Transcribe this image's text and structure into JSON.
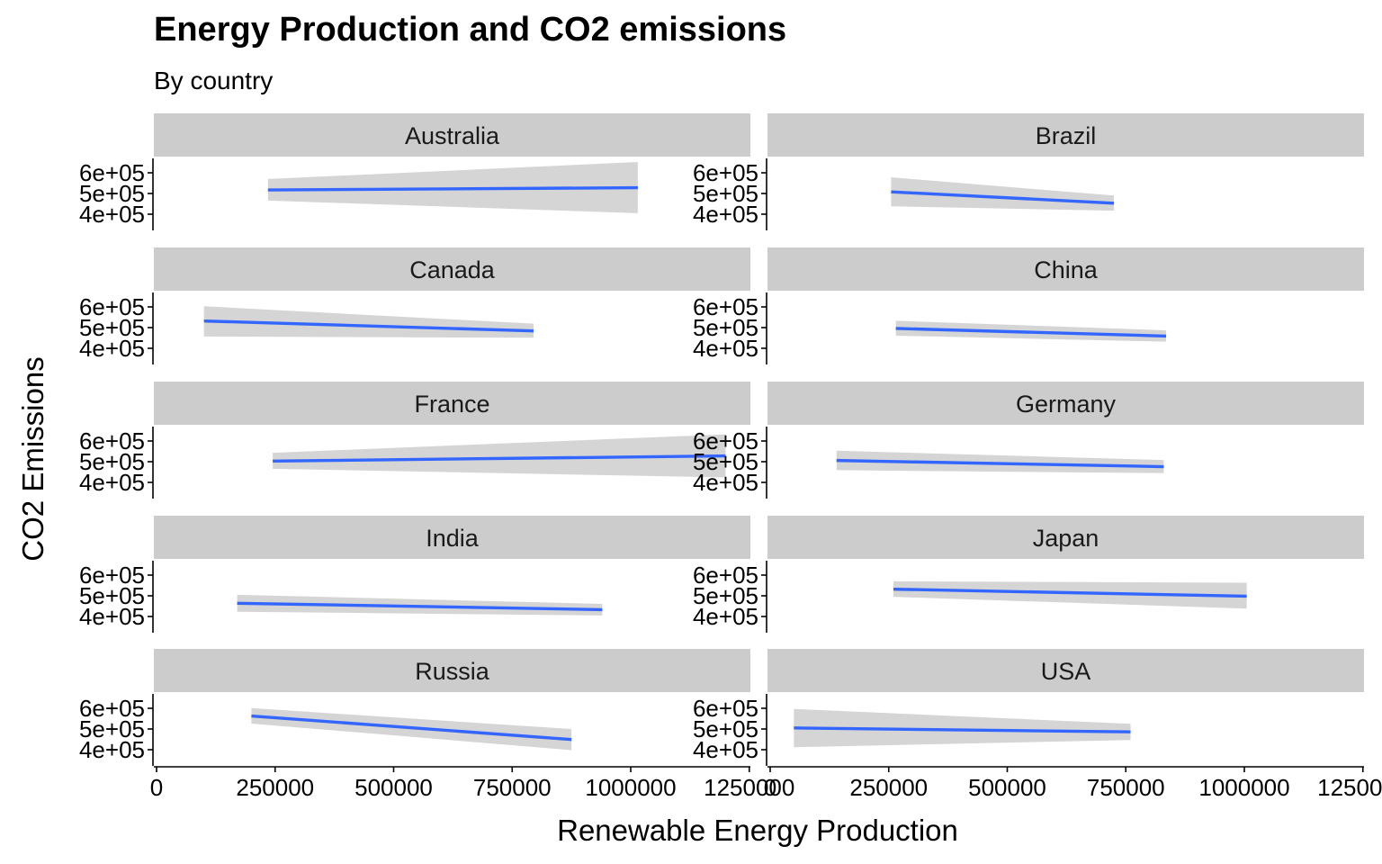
{
  "title": "Energy Production and CO2 emissions",
  "subtitle": "By country",
  "chart_data": {
    "type": "line",
    "title": "Energy Production and CO2 emissions",
    "subtitle": "By country",
    "xlabel": "Renewable Energy Production",
    "ylabel": "CO2 Emissions",
    "xlim": [
      0,
      1250000
    ],
    "ylim": [
      400000,
      600000
    ],
    "x_ticks": [
      0,
      250000,
      500000,
      750000,
      1000000,
      1250000
    ],
    "x_tick_labels": [
      "0",
      "250000",
      "500000",
      "750000",
      "1000000",
      "1250000"
    ],
    "y_ticks": [
      600000,
      500000,
      400000
    ],
    "y_tick_labels": [
      "6e+05",
      "5e+05",
      "4e+05"
    ],
    "layout": "facet grid, 5 rows x 2 columns",
    "grid": false,
    "line_color": "#3366FF",
    "band_color": "#D3D3D3",
    "strip_color": "#CCCCCC",
    "series": [
      {
        "name": "Australia",
        "x": [
          235000,
          1015000
        ],
        "y": [
          517000,
          528000
        ],
        "ci_low": [
          466000,
          405000
        ],
        "ci_high": [
          570000,
          652000
        ]
      },
      {
        "name": "Brazil",
        "x": [
          255000,
          725000
        ],
        "y": [
          508000,
          453000
        ],
        "ci_low": [
          438000,
          417000
        ],
        "ci_high": [
          578000,
          490000
        ]
      },
      {
        "name": "Canada",
        "x": [
          100000,
          795000
        ],
        "y": [
          532000,
          484000
        ],
        "ci_low": [
          457000,
          451000
        ],
        "ci_high": [
          603000,
          519000
        ]
      },
      {
        "name": "China",
        "x": [
          265000,
          835000
        ],
        "y": [
          496000,
          459000
        ],
        "ci_low": [
          461000,
          432000
        ],
        "ci_high": [
          533000,
          487000
        ]
      },
      {
        "name": "France",
        "x": [
          245000,
          1200000
        ],
        "y": [
          503000,
          528000
        ],
        "ci_low": [
          466000,
          424000
        ],
        "ci_high": [
          543000,
          632000
        ]
      },
      {
        "name": "Germany",
        "x": [
          140000,
          830000
        ],
        "y": [
          506000,
          476000
        ],
        "ci_low": [
          459000,
          445000
        ],
        "ci_high": [
          553000,
          508000
        ]
      },
      {
        "name": "India",
        "x": [
          170000,
          940000
        ],
        "y": [
          464000,
          433000
        ],
        "ci_low": [
          423000,
          405000
        ],
        "ci_high": [
          505000,
          461000
        ]
      },
      {
        "name": "Japan",
        "x": [
          260000,
          1005000
        ],
        "y": [
          532000,
          498000
        ],
        "ci_low": [
          495000,
          438000
        ],
        "ci_high": [
          570000,
          563000
        ]
      },
      {
        "name": "Russia",
        "x": [
          200000,
          875000
        ],
        "y": [
          563000,
          449000
        ],
        "ci_low": [
          526000,
          398000
        ],
        "ci_high": [
          601000,
          500000
        ]
      },
      {
        "name": "USA",
        "x": [
          50000,
          760000
        ],
        "y": [
          505000,
          486000
        ],
        "ci_low": [
          412000,
          447000
        ],
        "ci_high": [
          597000,
          525000
        ]
      }
    ]
  }
}
